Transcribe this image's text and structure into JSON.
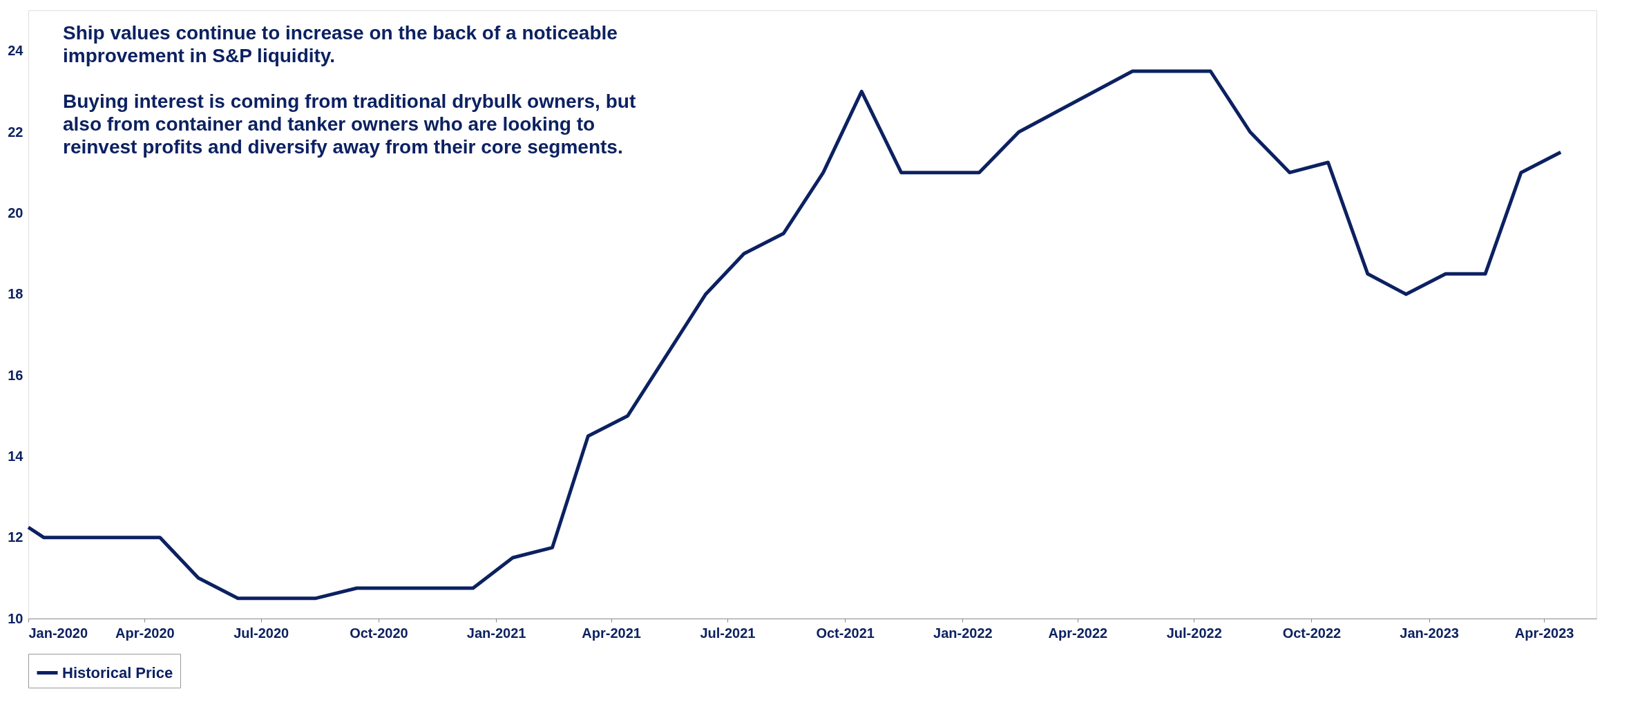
{
  "chart_data": {
    "type": "line",
    "annotations": [
      "Ship values continue to increase on the back of a noticeable improvement in S&P liquidity.",
      "Buying interest is coming from traditional drybulk owners, but also from container and tanker owners who are looking to reinvest profits and diversify away from their core segments."
    ],
    "x": [
      "2020-01-01",
      "2020-01-13",
      "2020-04-13",
      "2020-05-13",
      "2020-06-13",
      "2020-08-13",
      "2020-09-14",
      "2020-12-14",
      "2021-01-14",
      "2021-02-14",
      "2021-03-14",
      "2021-04-14",
      "2021-06-14",
      "2021-07-14",
      "2021-08-14",
      "2021-09-14",
      "2021-10-14",
      "2021-11-14",
      "2022-01-14",
      "2022-02-14",
      "2022-05-14",
      "2022-07-14",
      "2022-08-14",
      "2022-09-14",
      "2022-10-14",
      "2022-11-14",
      "2022-12-14",
      "2023-01-14",
      "2023-02-14",
      "2023-03-14",
      "2023-04-14"
    ],
    "series": [
      {
        "name": "Historical Price",
        "color": "#0c2161",
        "values": [
          12.25,
          12,
          12,
          11,
          10.5,
          10.5,
          10.75,
          10.75,
          11.5,
          11.75,
          14.5,
          15,
          18,
          19,
          19.5,
          21,
          23,
          21,
          21,
          22,
          23.5,
          23.5,
          22,
          21,
          21.25,
          18.5,
          18,
          18.5,
          18.5,
          21,
          21.5
        ]
      }
    ],
    "xlim": [
      "2020-01-01",
      "2023-05-12"
    ],
    "xticks": [
      {
        "value": "2020-01-01",
        "label": "Jan-2020"
      },
      {
        "value": "2020-04-01",
        "label": "Apr-2020"
      },
      {
        "value": "2020-07-01",
        "label": "Jul-2020"
      },
      {
        "value": "2020-10-01",
        "label": "Oct-2020"
      },
      {
        "value": "2021-01-01",
        "label": "Jan-2021"
      },
      {
        "value": "2021-04-01",
        "label": "Apr-2021"
      },
      {
        "value": "2021-07-01",
        "label": "Jul-2021"
      },
      {
        "value": "2021-10-01",
        "label": "Oct-2021"
      },
      {
        "value": "2022-01-01",
        "label": "Jan-2022"
      },
      {
        "value": "2022-04-01",
        "label": "Apr-2022"
      },
      {
        "value": "2022-07-01",
        "label": "Jul-2022"
      },
      {
        "value": "2022-10-01",
        "label": "Oct-2022"
      },
      {
        "value": "2023-01-01",
        "label": "Jan-2023"
      },
      {
        "value": "2023-04-01",
        "label": "Apr-2023"
      }
    ],
    "ylim": [
      10,
      25
    ],
    "yticks": [
      10,
      12,
      14,
      16,
      18,
      20,
      22,
      24
    ],
    "grid": false,
    "legend": "bottom",
    "marker": "none",
    "line_style": "solid"
  }
}
